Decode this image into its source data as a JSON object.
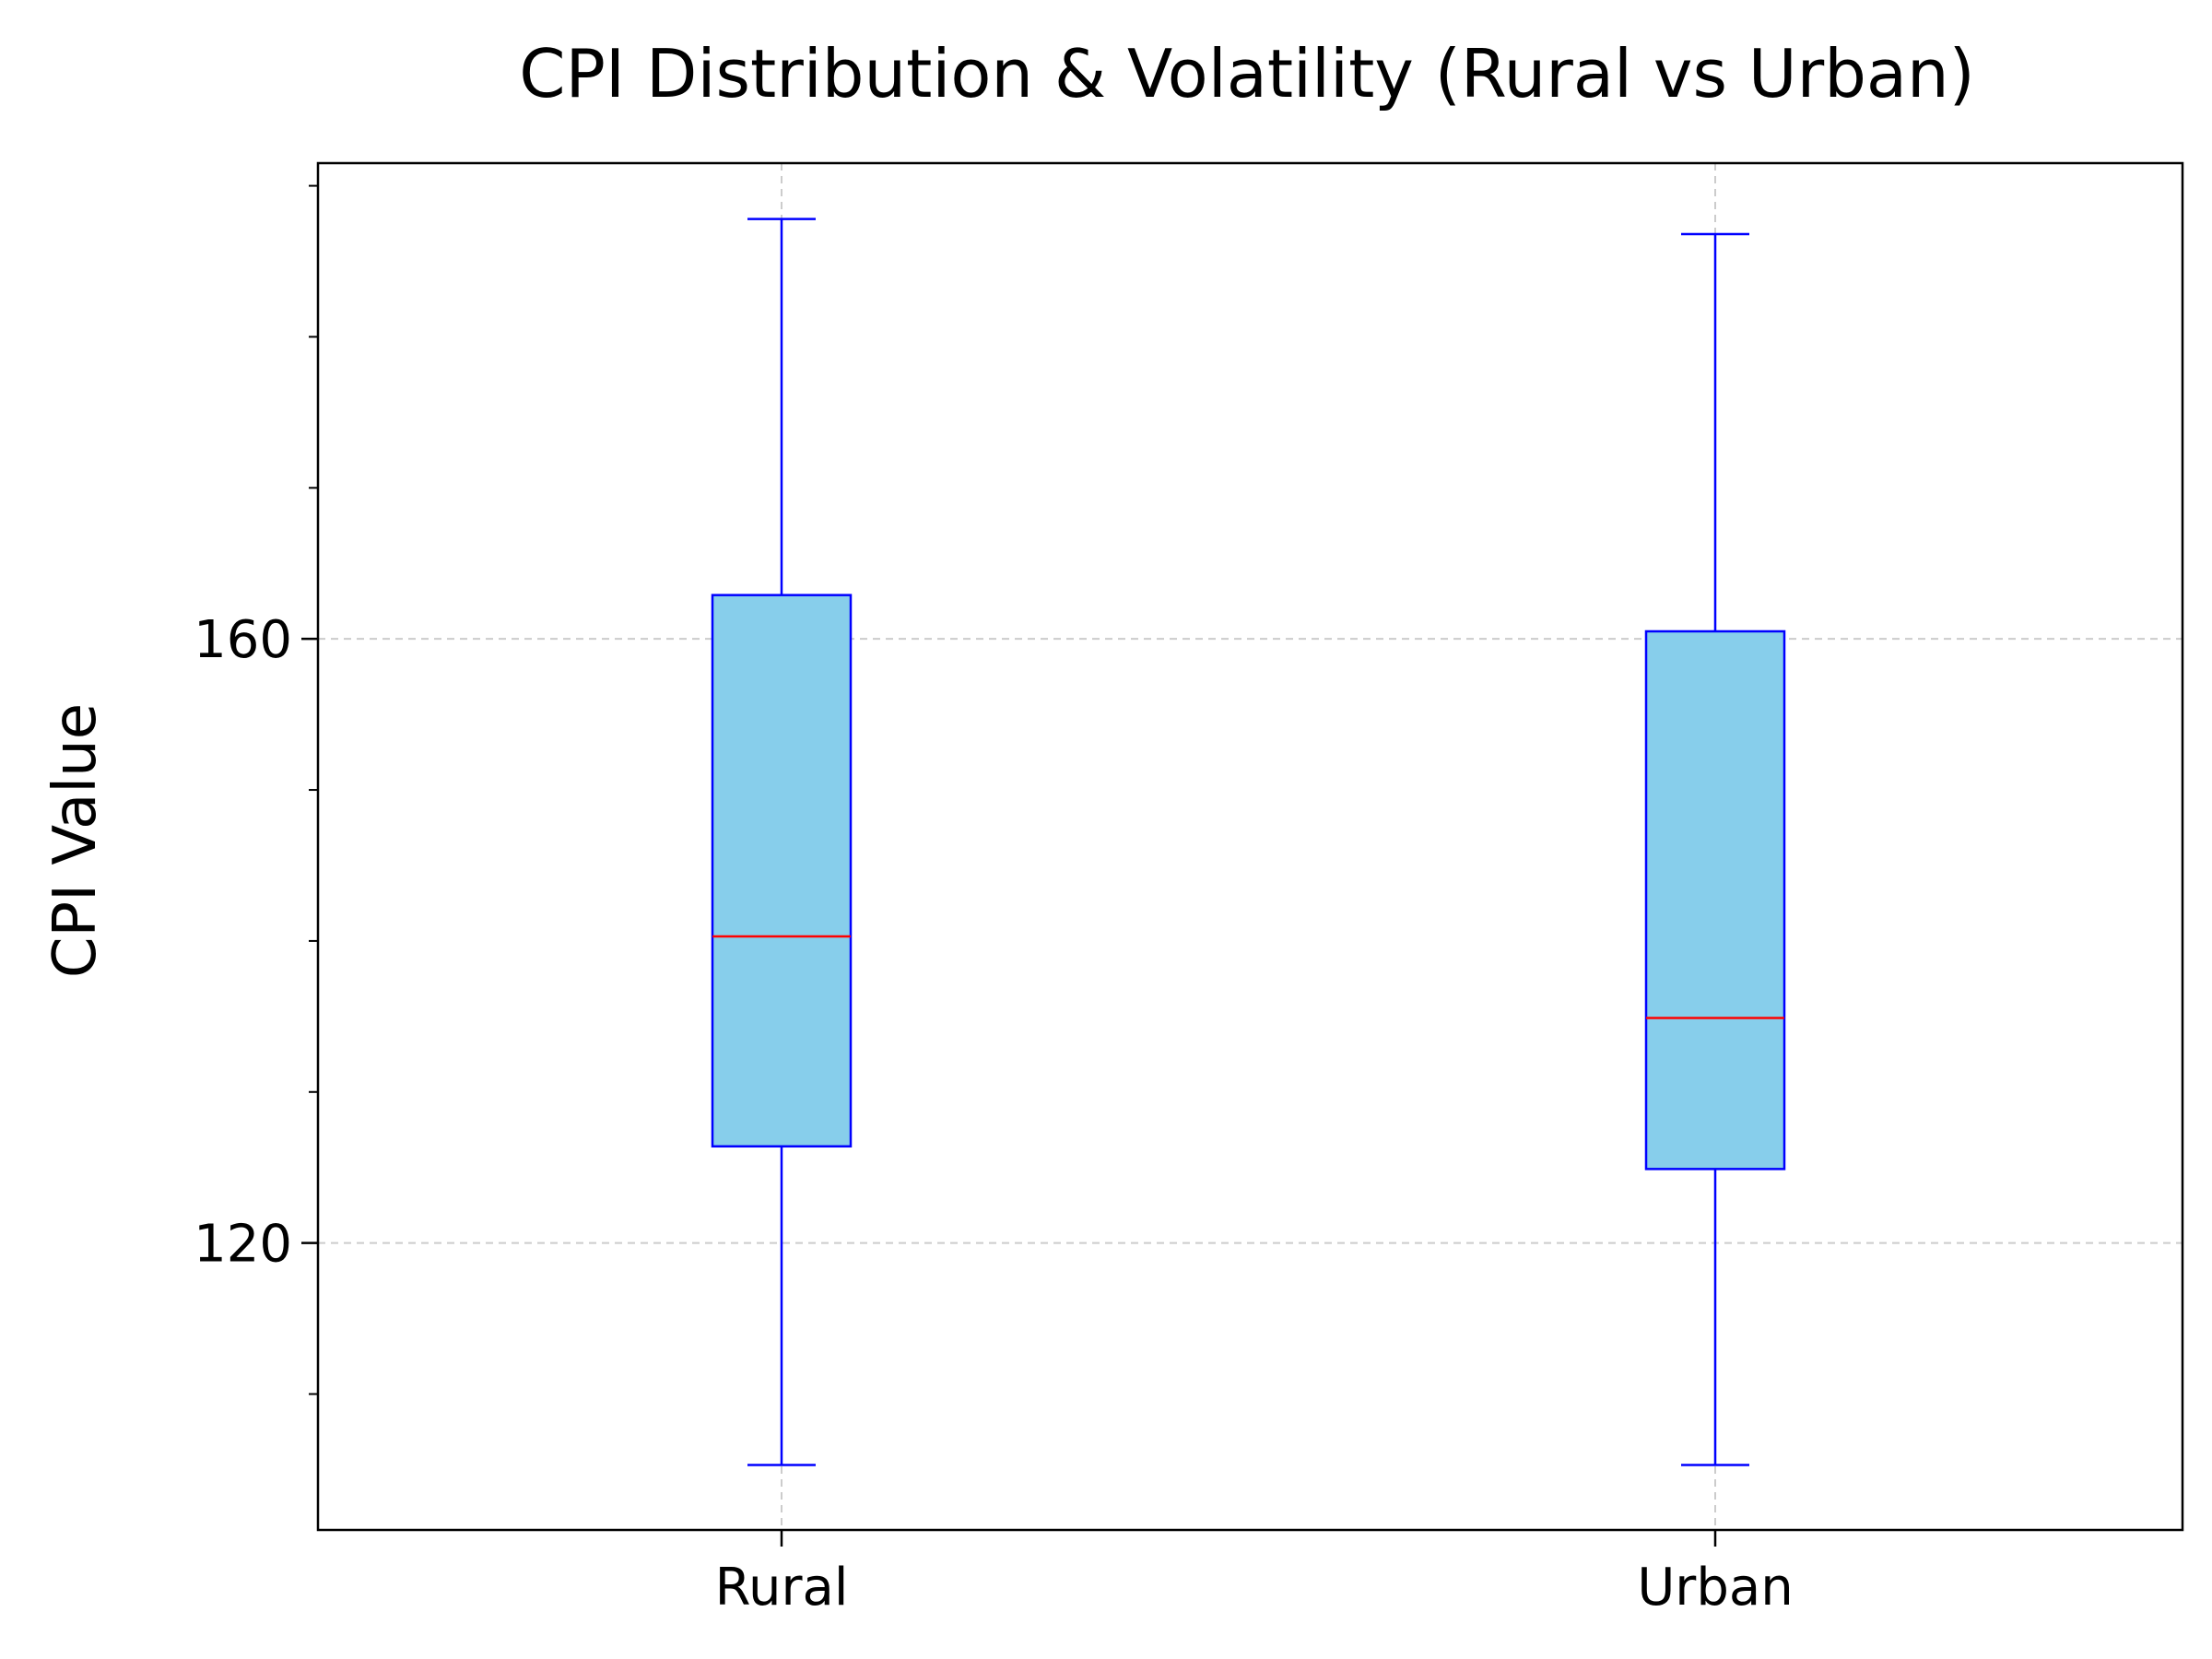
{
  "chart_data": {
    "type": "boxplot",
    "title": "CPI Distribution & Volatility (Rural vs Urban)",
    "xlabel": "",
    "ylabel": "CPI Value",
    "ylim": [
      101,
      191.5
    ],
    "yticks_major": [
      120,
      160
    ],
    "yticks_minor": [
      110,
      130,
      140,
      150,
      170,
      180,
      190
    ],
    "grid": true,
    "categories": [
      "Rural",
      "Urban"
    ],
    "boxes": [
      {
        "name": "Rural",
        "whisker_low": 105.3,
        "q1": 126.4,
        "median": 140.3,
        "q3": 162.9,
        "whisker_high": 187.8
      },
      {
        "name": "Urban",
        "whisker_low": 105.3,
        "q1": 124.9,
        "median": 134.9,
        "q3": 160.5,
        "whisker_high": 186.8
      }
    ],
    "colors": {
      "box_fill": "#87CEEB",
      "box_edge": "#0000FF",
      "median": "#FF0000",
      "grid": "#cccccc",
      "axis": "#000000"
    }
  }
}
